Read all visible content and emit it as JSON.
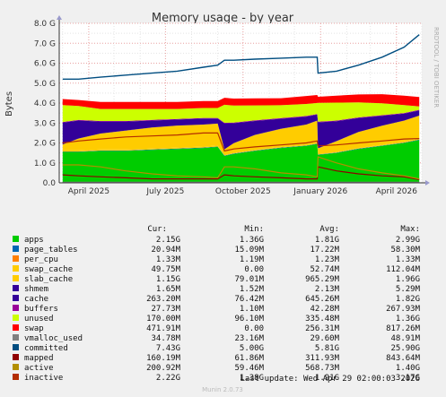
{
  "title": "Memory usage - by year",
  "watermark": "RRDTOOL / TOBI OETIKER",
  "footer": "Munin 2.0.73",
  "last_update": "Last update: Wed Apr 29 02:00:03 2026",
  "legend_headers": {
    "cur": "Cur:",
    "min": "Min:",
    "avg": "Avg:",
    "max": "Max:"
  },
  "chart_data": {
    "type": "area",
    "title": "Memory usage - by year",
    "ylabel": "Bytes",
    "xlabel": "",
    "ylim": [
      0,
      8
    ],
    "y_unit": "GB",
    "y_ticks": [
      "0.0",
      "1.0 G",
      "2.0 G",
      "3.0 G",
      "4.0 G",
      "5.0 G",
      "6.0 G",
      "7.0 G",
      "8.0 G"
    ],
    "x_ticks": [
      "April 2025",
      "July 2025",
      "October 2025",
      "January 2026",
      "April 2026"
    ],
    "grid": true,
    "x": [
      "2025-03-01",
      "2025-03-20",
      "2025-04-15",
      "2025-05-15",
      "2025-06-15",
      "2025-07-15",
      "2025-08-15",
      "2025-09-01",
      "2025-09-09",
      "2025-09-20",
      "2025-10-15",
      "2025-11-15",
      "2025-12-15",
      "2025-12-28",
      "2025-12-29",
      "2026-01-20",
      "2026-02-15",
      "2026-03-15",
      "2026-04-10",
      "2026-04-28"
    ],
    "series": [
      {
        "name": "apps",
        "color": "#00cc00",
        "values": [
          1.55,
          1.55,
          1.6,
          1.6,
          1.65,
          1.7,
          1.75,
          1.8,
          1.35,
          1.45,
          1.6,
          1.75,
          1.85,
          1.95,
          1.4,
          1.5,
          1.7,
          1.85,
          2.0,
          2.15
        ]
      },
      {
        "name": "page_tables",
        "color": "#0066b3",
        "values": [
          0.02,
          0.02,
          0.02,
          0.02,
          0.02,
          0.02,
          0.02,
          0.02,
          0.02,
          0.02,
          0.02,
          0.02,
          0.02,
          0.02,
          0.02,
          0.02,
          0.02,
          0.02,
          0.02,
          0.02
        ]
      },
      {
        "name": "per_cpu",
        "color": "#ff8000",
        "values": [
          0.001,
          0.001,
          0.001,
          0.001,
          0.001,
          0.001,
          0.001,
          0.001,
          0.001,
          0.001,
          0.001,
          0.001,
          0.001,
          0.001,
          0.001,
          0.001,
          0.001,
          0.001,
          0.001,
          0.001
        ]
      },
      {
        "name": "swap_cache",
        "color": "#ffcc00",
        "values": [
          0.05,
          0.05,
          0.05,
          0.05,
          0.05,
          0.05,
          0.05,
          0.05,
          0.01,
          0.02,
          0.03,
          0.04,
          0.05,
          0.05,
          0.01,
          0.02,
          0.03,
          0.04,
          0.05,
          0.05
        ]
      },
      {
        "name": "slab_cache",
        "color": "#ffcc00",
        "values": [
          0.3,
          0.6,
          0.8,
          0.95,
          1.05,
          1.1,
          1.1,
          1.1,
          0.3,
          0.5,
          0.75,
          0.9,
          1.0,
          1.1,
          0.3,
          0.55,
          0.8,
          0.95,
          1.05,
          1.15
        ]
      },
      {
        "name": "shmem",
        "color": "#330099",
        "values": [
          0.002,
          0.002,
          0.002,
          0.002,
          0.002,
          0.002,
          0.002,
          0.002,
          0.002,
          0.002,
          0.002,
          0.002,
          0.002,
          0.002,
          0.002,
          0.002,
          0.002,
          0.002,
          0.002,
          0.002
        ]
      },
      {
        "name": "cache",
        "color": "#330099",
        "values": [
          1.1,
          0.9,
          0.6,
          0.45,
          0.35,
          0.3,
          0.3,
          0.25,
          1.3,
          1.0,
          0.7,
          0.5,
          0.4,
          0.3,
          1.3,
          1.0,
          0.7,
          0.5,
          0.35,
          0.26
        ]
      },
      {
        "name": "buffers",
        "color": "#990099",
        "values": [
          0.03,
          0.03,
          0.03,
          0.03,
          0.03,
          0.03,
          0.03,
          0.03,
          0.03,
          0.03,
          0.03,
          0.03,
          0.03,
          0.03,
          0.03,
          0.03,
          0.03,
          0.03,
          0.03,
          0.03
        ]
      },
      {
        "name": "unused",
        "color": "#ccff00",
        "values": [
          0.85,
          0.7,
          0.6,
          0.6,
          0.55,
          0.5,
          0.5,
          0.5,
          0.9,
          0.85,
          0.75,
          0.65,
          0.6,
          0.55,
          0.95,
          0.9,
          0.75,
          0.6,
          0.4,
          0.17
        ]
      },
      {
        "name": "swap",
        "color": "#ff0000",
        "values": [
          0.3,
          0.3,
          0.35,
          0.35,
          0.35,
          0.35,
          0.35,
          0.35,
          0.35,
          0.35,
          0.35,
          0.35,
          0.4,
          0.4,
          0.3,
          0.35,
          0.4,
          0.45,
          0.47,
          0.47
        ]
      }
    ],
    "line_series": [
      {
        "name": "vmalloc_used",
        "color": "#808080",
        "values": [
          0.03,
          0.03,
          0.03,
          0.03,
          0.03,
          0.03,
          0.03,
          0.03,
          0.03,
          0.03,
          0.03,
          0.03,
          0.03,
          0.03,
          0.03,
          0.03,
          0.03,
          0.03,
          0.03,
          0.03
        ]
      },
      {
        "name": "committed",
        "color": "#004d80",
        "values": [
          5.2,
          5.2,
          5.3,
          5.4,
          5.5,
          5.6,
          5.8,
          5.9,
          6.15,
          6.15,
          6.2,
          6.25,
          6.3,
          6.3,
          5.5,
          5.6,
          5.9,
          6.3,
          6.8,
          7.43
        ]
      },
      {
        "name": "mapped",
        "color": "#8f0000",
        "values": [
          0.4,
          0.35,
          0.3,
          0.25,
          0.2,
          0.2,
          0.2,
          0.2,
          0.4,
          0.35,
          0.3,
          0.25,
          0.2,
          0.2,
          0.8,
          0.6,
          0.45,
          0.35,
          0.3,
          0.16
        ]
      },
      {
        "name": "active",
        "color": "#b38f00",
        "values": [
          0.9,
          0.9,
          0.8,
          0.6,
          0.45,
          0.35,
          0.3,
          0.25,
          0.8,
          0.8,
          0.7,
          0.5,
          0.4,
          0.3,
          1.3,
          1.0,
          0.7,
          0.5,
          0.35,
          0.2
        ]
      },
      {
        "name": "inactive",
        "color": "#b32d00",
        "values": [
          2.0,
          2.1,
          2.2,
          2.3,
          2.35,
          2.4,
          2.5,
          2.5,
          1.6,
          1.7,
          1.8,
          1.9,
          2.0,
          2.1,
          1.85,
          1.9,
          2.0,
          2.1,
          2.2,
          2.22
        ]
      }
    ]
  },
  "legend": [
    {
      "name": "apps",
      "color": "#00cc00",
      "cur": "2.15G",
      "min": "1.36G",
      "avg": "1.81G",
      "max": "2.99G"
    },
    {
      "name": "page_tables",
      "color": "#0066b3",
      "cur": "20.94M",
      "min": "15.09M",
      "avg": "17.22M",
      "max": "58.30M"
    },
    {
      "name": "per_cpu",
      "color": "#ff8000",
      "cur": "1.33M",
      "min": "1.19M",
      "avg": "1.23M",
      "max": "1.33M"
    },
    {
      "name": "swap_cache",
      "color": "#ffcc00",
      "cur": "49.75M",
      "min": "0.00",
      "avg": "52.74M",
      "max": "112.04M"
    },
    {
      "name": "slab_cache",
      "color": "#ffcc00",
      "cur": "1.15G",
      "min": "79.01M",
      "avg": "965.29M",
      "max": "1.96G"
    },
    {
      "name": "shmem",
      "color": "#330099",
      "cur": "1.65M",
      "min": "1.52M",
      "avg": "2.13M",
      "max": "5.29M"
    },
    {
      "name": "cache",
      "color": "#330099",
      "cur": "263.20M",
      "min": "76.42M",
      "avg": "645.26M",
      "max": "1.82G"
    },
    {
      "name": "buffers",
      "color": "#990099",
      "cur": "27.73M",
      "min": "1.10M",
      "avg": "42.28M",
      "max": "267.93M"
    },
    {
      "name": "unused",
      "color": "#ccff00",
      "cur": "170.00M",
      "min": "96.10M",
      "avg": "335.48M",
      "max": "1.36G"
    },
    {
      "name": "swap",
      "color": "#ff0000",
      "cur": "471.91M",
      "min": "0.00",
      "avg": "256.31M",
      "max": "817.26M"
    },
    {
      "name": "vmalloc_used",
      "color": "#808080",
      "cur": "34.78M",
      "min": "23.16M",
      "avg": "29.60M",
      "max": "48.91M"
    },
    {
      "name": "committed",
      "color": "#004d80",
      "cur": "7.43G",
      "min": "5.00G",
      "avg": "5.81G",
      "max": "25.90G"
    },
    {
      "name": "mapped",
      "color": "#8f0000",
      "cur": "160.19M",
      "min": "61.86M",
      "avg": "311.93M",
      "max": "843.64M"
    },
    {
      "name": "active",
      "color": "#b38f00",
      "cur": "200.92M",
      "min": "59.46M",
      "avg": "568.73M",
      "max": "1.40G"
    },
    {
      "name": "inactive",
      "color": "#b32d00",
      "cur": "2.22G",
      "min": "1.38G",
      "avg": "1.91G",
      "max": "3.17G"
    }
  ]
}
